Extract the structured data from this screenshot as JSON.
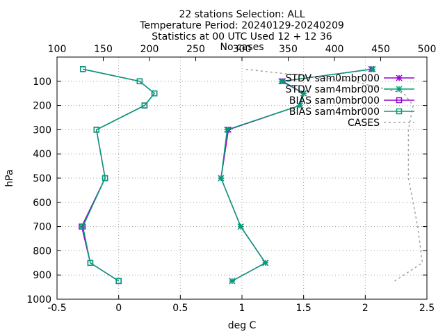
{
  "chart_data": {
    "type": "line",
    "title_lines": [
      "22 stations Selection: ALL",
      "Temperature  Period: 20240129-20240209",
      "Statistics at 00 UTC  Used 12 + 12 36",
      "No cases"
    ],
    "xlabel": "deg C",
    "ylabel": "hPa",
    "xlim": [
      -0.5,
      2.5
    ],
    "ylim": [
      1000,
      0
    ],
    "x2lim": [
      100,
      500
    ],
    "x_ticks": [
      "-0.5",
      "0",
      "0.5",
      "1",
      "1.5",
      "2",
      "2.5"
    ],
    "x2_ticks": [
      "100",
      "150",
      "200",
      "250",
      "300",
      "350",
      "400",
      "450",
      "500"
    ],
    "y_ticks": [
      "100",
      "200",
      "300",
      "400",
      "500",
      "600",
      "700",
      "800",
      "900",
      "1000"
    ],
    "grid": true,
    "legend_position": "top-right",
    "levels": [
      925,
      850,
      700,
      500,
      300,
      200,
      150,
      100,
      50
    ],
    "series": [
      {
        "name": "STDV sam0mbr000",
        "color": "#9400d3",
        "marker": "star",
        "dash": "",
        "axis": "x1",
        "values": [
          0.92,
          1.19,
          0.99,
          0.83,
          0.89,
          1.47,
          1.5,
          1.33,
          2.05
        ]
      },
      {
        "name": "STDV sam4mbr000",
        "color": "#009e73",
        "marker": "star",
        "dash": "",
        "axis": "x1",
        "values": [
          0.92,
          1.19,
          0.99,
          0.83,
          0.88,
          1.47,
          1.5,
          1.32,
          2.06
        ]
      },
      {
        "name": "BIAS sam0mbr000",
        "color": "#9400d3",
        "marker": "square",
        "dash": "",
        "axis": "x1",
        "values": [
          0.0,
          -0.23,
          -0.3,
          -0.11,
          -0.18,
          0.21,
          0.29,
          0.17,
          -0.29
        ]
      },
      {
        "name": "BIAS sam4mbr000",
        "color": "#009e73",
        "marker": "square",
        "dash": "",
        "axis": "x1",
        "values": [
          0.0,
          -0.23,
          -0.29,
          -0.11,
          -0.18,
          0.21,
          0.29,
          0.17,
          -0.29
        ]
      },
      {
        "name": "CASES",
        "color": "#a0a0a0",
        "marker": "none",
        "dash": "3 4",
        "axis": "x2",
        "values": [
          465,
          495,
          490,
          480,
          480,
          485,
          475,
          420,
          303
        ]
      }
    ]
  }
}
